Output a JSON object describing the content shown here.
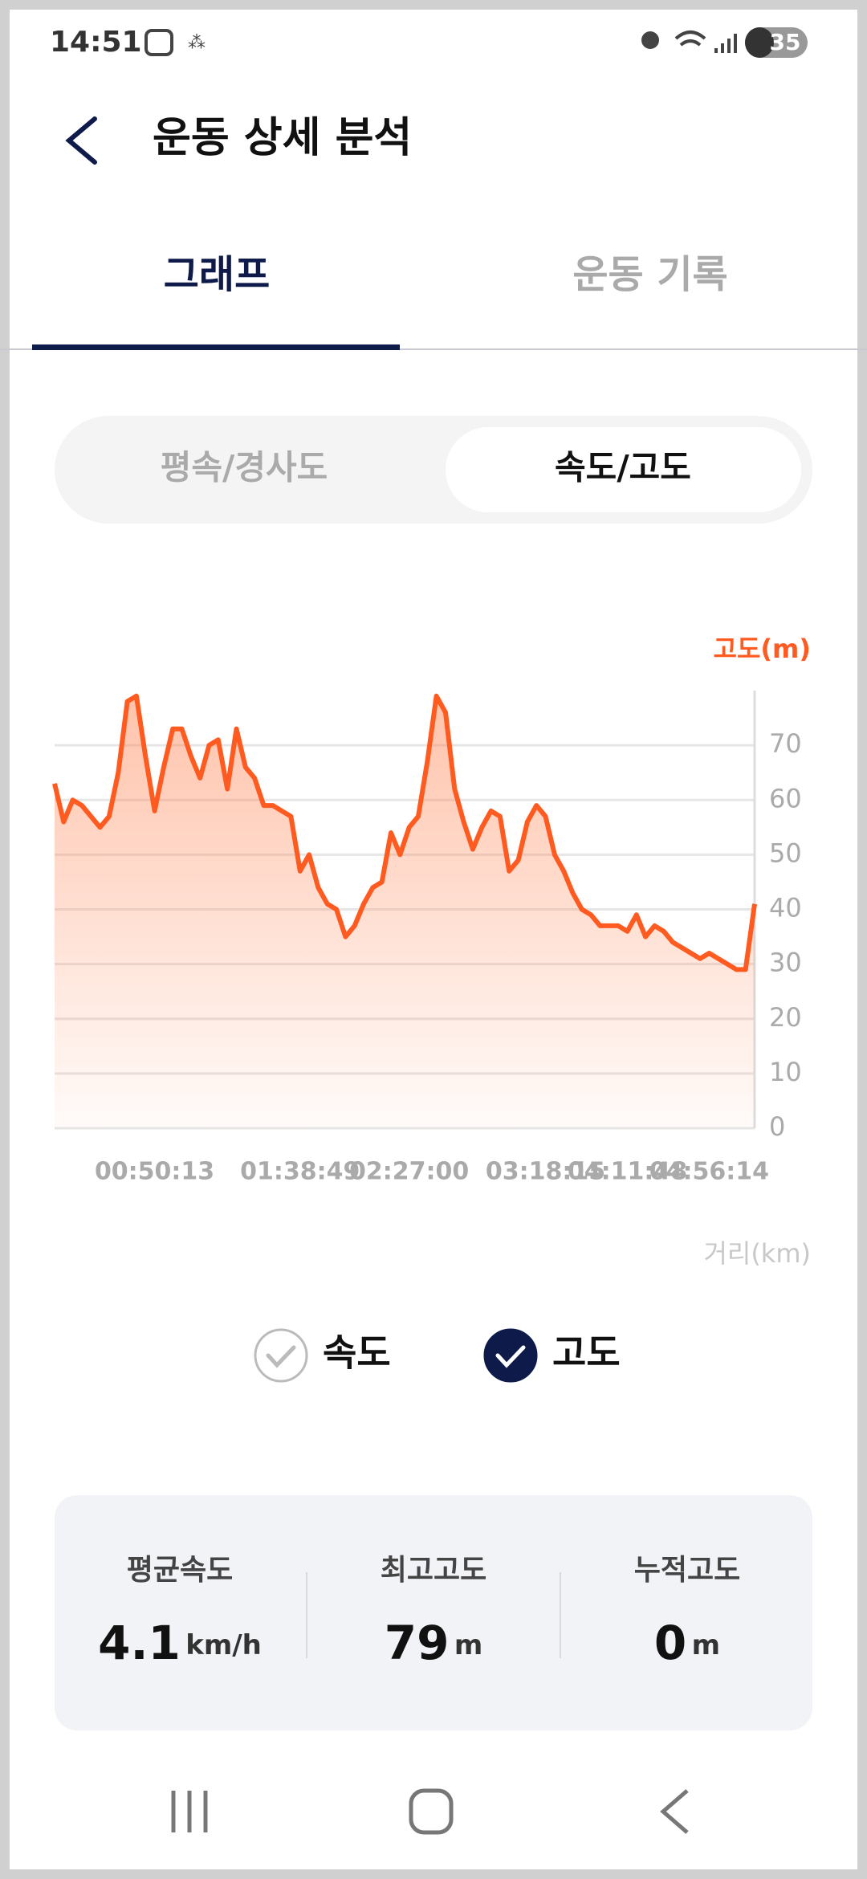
{
  "status_bar": {
    "time": "14:51",
    "battery": "35"
  },
  "header": {
    "title": "운동 상세 분석"
  },
  "tabs": [
    "그래프",
    "운동 기록"
  ],
  "segments": [
    "평속/경사도",
    "속도/고도"
  ],
  "chart_data": {
    "type": "line",
    "y_label": "고도(m)",
    "x_label": "거리(km)",
    "categories": [
      null,
      null,
      null,
      null,
      null,
      null,
      null,
      null,
      null,
      null,
      null,
      "00:50:13",
      null,
      null,
      null,
      null,
      null,
      null,
      null,
      null,
      null,
      null,
      null,
      null,
      null,
      null,
      null,
      "01:38:49",
      null,
      null,
      null,
      null,
      null,
      null,
      null,
      null,
      null,
      null,
      null,
      "02:27:00",
      null,
      null,
      null,
      null,
      null,
      null,
      null,
      null,
      null,
      null,
      null,
      null,
      null,
      null,
      "03:18:15",
      null,
      null,
      null,
      null,
      null,
      null,
      null,
      null,
      "04:11:48",
      null,
      null,
      null,
      null,
      null,
      null,
      null,
      null,
      "04:56:14",
      null,
      null,
      null,
      null,
      null
    ],
    "series": [
      {
        "color": "#ff5a1f",
        "values": [
          63,
          56,
          60,
          59,
          57,
          55,
          57,
          65,
          78,
          79,
          68,
          58,
          66,
          73,
          73,
          68,
          64,
          70,
          71,
          62,
          73,
          66,
          64,
          59,
          59,
          58,
          57,
          47,
          50,
          44,
          41,
          40,
          35,
          37,
          41,
          44,
          45,
          54,
          50,
          55,
          57,
          67,
          79,
          76,
          62,
          56,
          51,
          55,
          58,
          57,
          47,
          49,
          56,
          59,
          57,
          50,
          47,
          43,
          40,
          39,
          37,
          37,
          37,
          36,
          39,
          35,
          37,
          36,
          34,
          33,
          32,
          31,
          32,
          31,
          30,
          29,
          29,
          41
        ]
      }
    ],
    "ylim": [
      0,
      80
    ],
    "yticks": [
      0,
      10,
      20,
      30,
      40,
      50,
      60,
      70
    ],
    "grid": true,
    "toggles": [
      {
        "label": "속도",
        "checked": false
      },
      {
        "label": "고도",
        "checked": true
      }
    ]
  },
  "stats": [
    {
      "label": "평균속도",
      "value": 4.1,
      "unit": "km/h"
    },
    {
      "label": "최고고도",
      "value": 79,
      "unit": "m"
    },
    {
      "label": "누적고도",
      "value": 0,
      "unit": "m"
    }
  ]
}
